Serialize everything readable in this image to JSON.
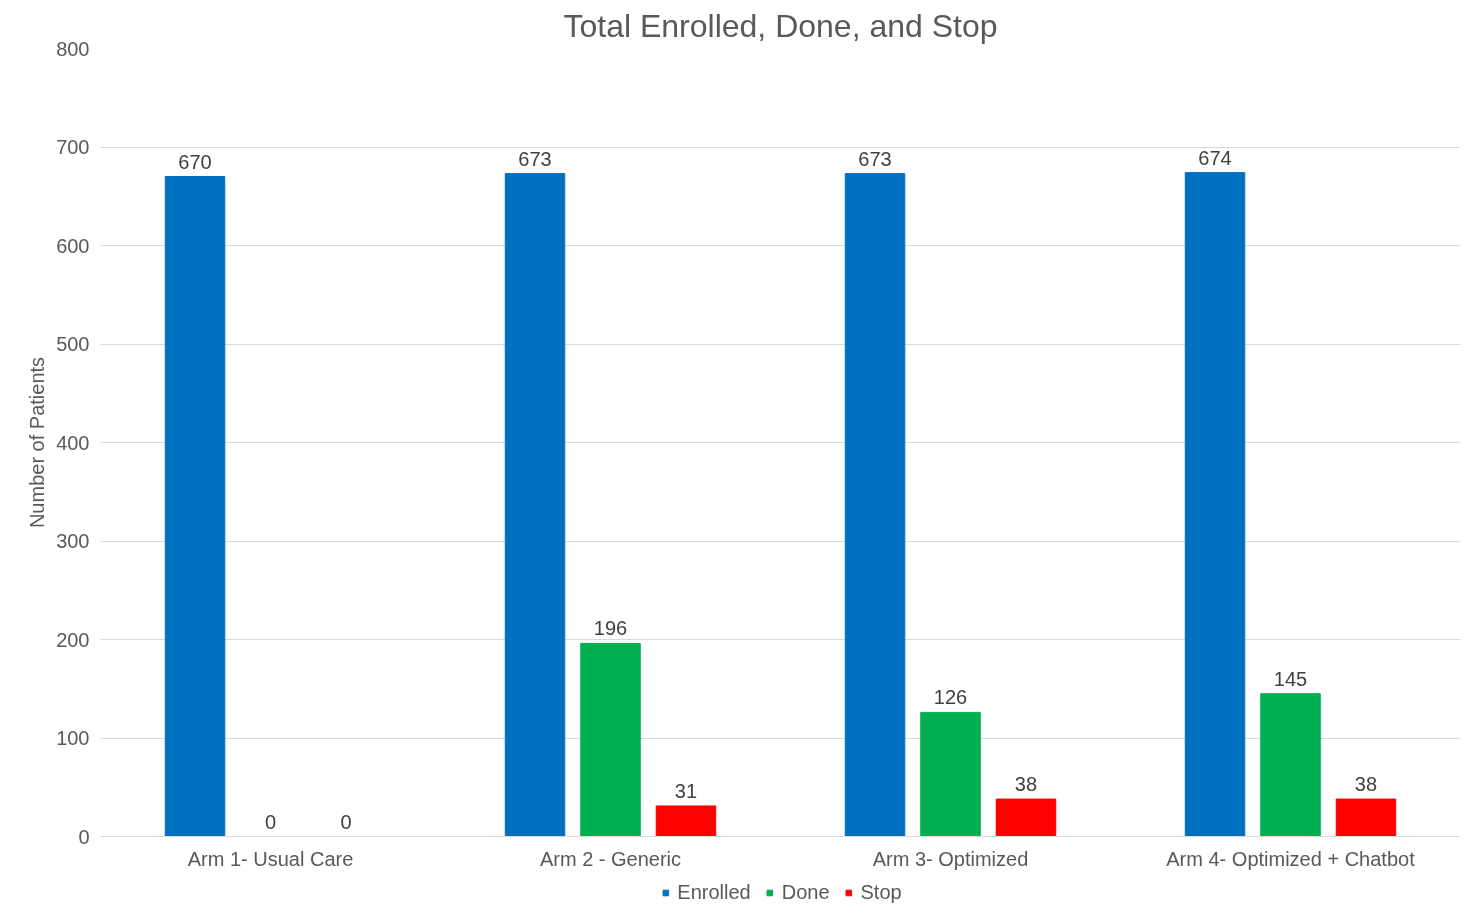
{
  "chart_data": {
    "type": "bar",
    "title": "Total Enrolled, Done, and Stop",
    "ylabel": "Number of Patients",
    "categories": [
      "Arm 1- Usual Care",
      "Arm 2 - Generic",
      "Arm 3- Optimized",
      "Arm 4- Optimized + Chatbot"
    ],
    "series": [
      {
        "name": "Enrolled",
        "color": "#0070c0",
        "values": [
          670,
          673,
          673,
          674
        ]
      },
      {
        "name": "Done",
        "color": "#00b050",
        "values": [
          0,
          196,
          126,
          145
        ]
      },
      {
        "name": "Stop",
        "color": "#ff0000",
        "values": [
          0,
          31,
          38,
          38
        ]
      }
    ],
    "ylim": [
      0,
      800
    ],
    "yticks": [
      0,
      100,
      200,
      300,
      400,
      500,
      600,
      700,
      800
    ],
    "grid": "y",
    "legend": "bottom",
    "data_labels": true
  }
}
